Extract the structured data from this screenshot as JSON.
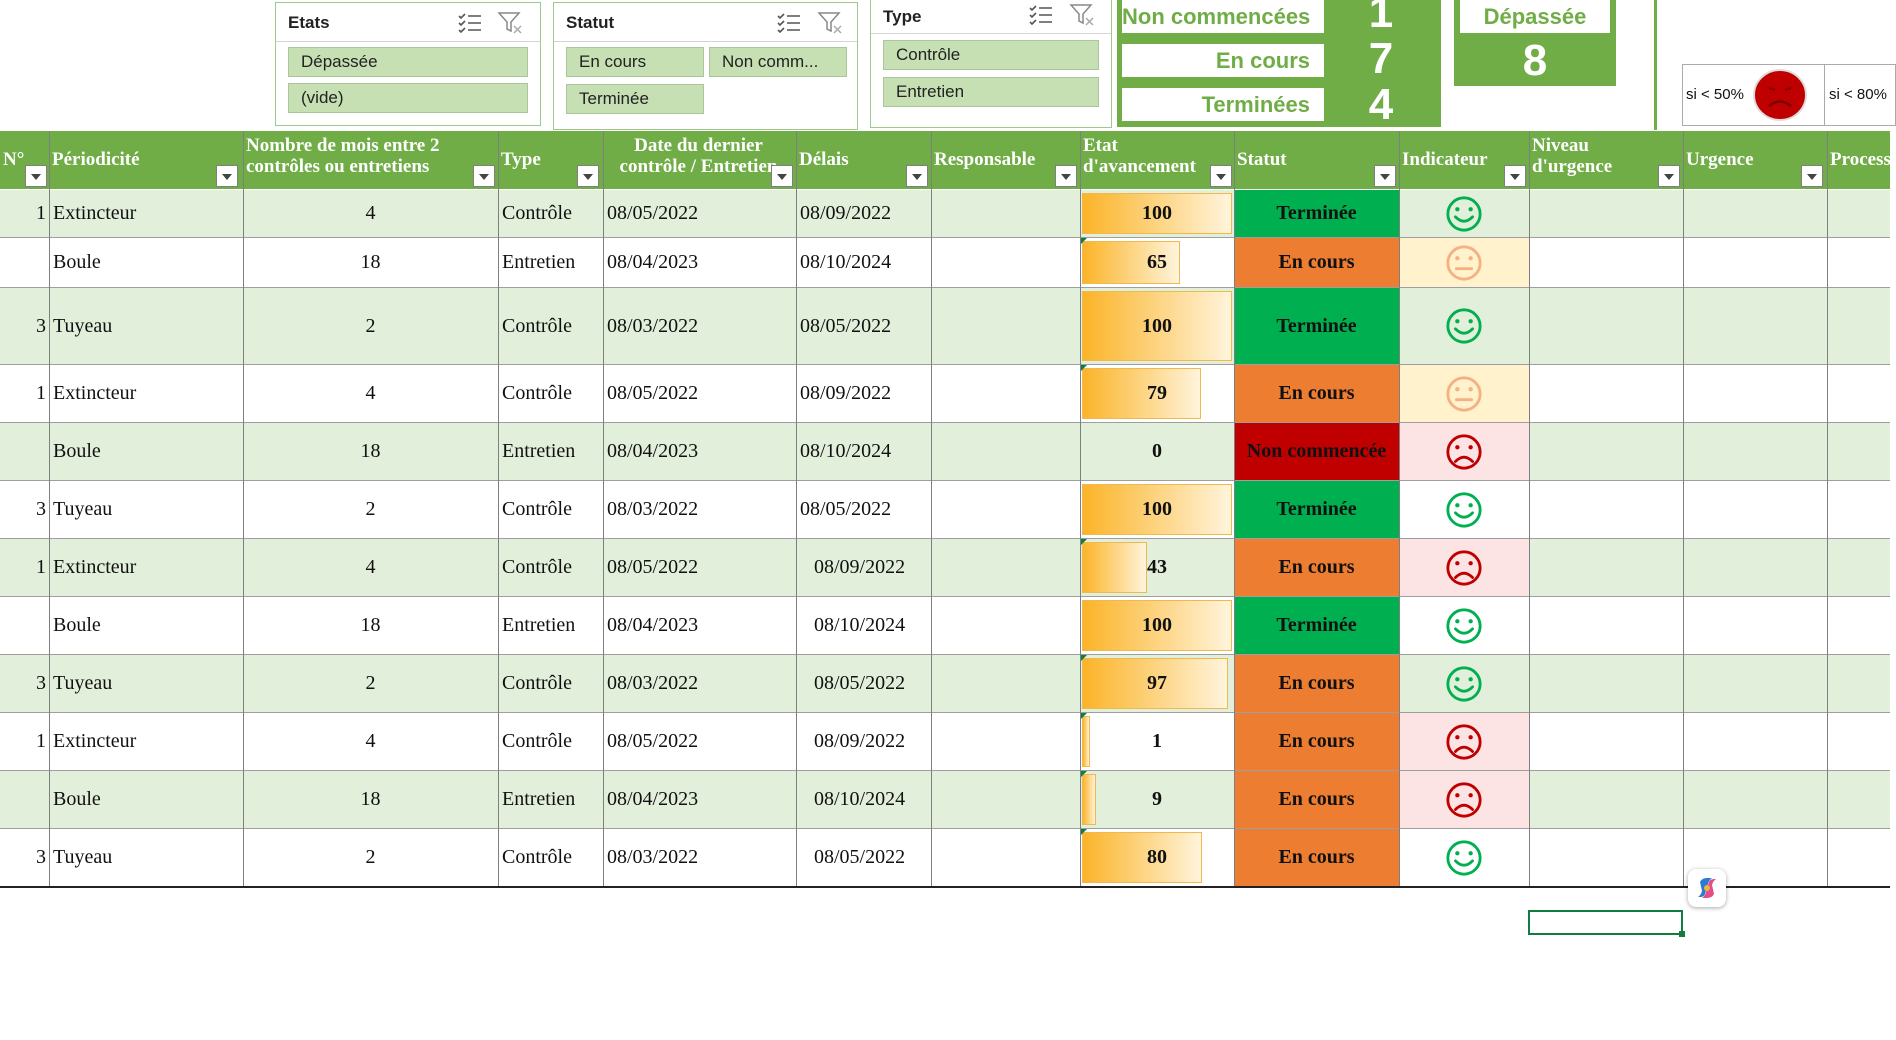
{
  "slicers": {
    "etats": {
      "title": "Etats",
      "items": [
        "Dépassée",
        "(vide)"
      ]
    },
    "statut": {
      "title": "Statut",
      "items": [
        "En cours",
        "Non comm...",
        "Terminée"
      ]
    },
    "type": {
      "title": "Type",
      "items": [
        "Contrôle",
        "Entretien"
      ]
    }
  },
  "kpis": [
    {
      "label": "Non commencées",
      "value": "1"
    },
    {
      "label": "En cours",
      "value": "7"
    },
    {
      "label": "Terminées",
      "value": "4"
    }
  ],
  "overdue": {
    "label": "Dépassée",
    "value": "8"
  },
  "legend": {
    "lt50": "si < 50%",
    "lt80": "si < 80%"
  },
  "headers": {
    "num": "N°",
    "periodicite": "Périodicité",
    "nbmois": [
      "Nombre de mois entre 2",
      "contrôles ou entretiens"
    ],
    "type": "Type",
    "date": [
      "Date  du dernier",
      "contrôle / Entretien"
    ],
    "delais": "Délais",
    "responsable": "Responsable",
    "etat": [
      "Etat",
      "d'avancement"
    ],
    "statut": "Statut",
    "indicateur": "Indicateur",
    "niveau": [
      "Niveau",
      "d'urgence"
    ],
    "urgence": "Urgence",
    "process": "Process"
  },
  "colors": {
    "header_green": "#70ad47",
    "band_green": "#e2efda",
    "done_green": "#00b050",
    "in_progress_orange": "#ed7d31",
    "not_started_red": "#c00000",
    "smile_green": "#00b050",
    "neutral_orange": "#f4b183",
    "sad_red": "#c00000"
  },
  "rows": [
    {
      "num": "1",
      "periodicite": "Extincteur",
      "nbmois": "4",
      "type": "Contrôle",
      "date": "08/05/2022",
      "delais": "08/09/2022",
      "etat": 100,
      "statut": "Terminée",
      "indicateur": "smile"
    },
    {
      "num": "",
      "periodicite": "Boule",
      "nbmois": "18",
      "type": "Entretien",
      "date": "08/04/2023",
      "delais": "08/10/2024",
      "etat": 65,
      "statut": "En cours",
      "indicateur": "neutral"
    },
    {
      "num": "3",
      "periodicite": "Tuyeau",
      "nbmois": "2",
      "type": "Contrôle",
      "date": "08/03/2022",
      "delais": "08/05/2022",
      "etat": 100,
      "statut": "Terminée",
      "indicateur": "smile"
    },
    {
      "num": "1",
      "periodicite": "Extincteur",
      "nbmois": "4",
      "type": "Contrôle",
      "date": "08/05/2022",
      "delais": "08/09/2022",
      "etat": 79,
      "statut": "En cours",
      "indicateur": "neutral"
    },
    {
      "num": "",
      "periodicite": "Boule",
      "nbmois": "18",
      "type": "Entretien",
      "date": "08/04/2023",
      "delais": "08/10/2024",
      "etat": 0,
      "statut": "Non commencée",
      "indicateur": "sad"
    },
    {
      "num": "3",
      "periodicite": "Tuyeau",
      "nbmois": "2",
      "type": "Contrôle",
      "date": "08/03/2022",
      "delais": "08/05/2022",
      "etat": 100,
      "statut": "Terminée",
      "indicateur": "smile"
    },
    {
      "num": "1",
      "periodicite": "Extincteur",
      "nbmois": "4",
      "type": "Contrôle",
      "date": "08/05/2022",
      "delais": "08/09/2022",
      "etat": 43,
      "statut": "En cours",
      "indicateur": "sad"
    },
    {
      "num": "",
      "periodicite": "Boule",
      "nbmois": "18",
      "type": "Entretien",
      "date": "08/04/2023",
      "delais": "08/10/2024",
      "etat": 100,
      "statut": "Terminée",
      "indicateur": "smile"
    },
    {
      "num": "3",
      "periodicite": "Tuyeau",
      "nbmois": "2",
      "type": "Contrôle",
      "date": "08/03/2022",
      "delais": "08/05/2022",
      "etat": 97,
      "statut": "En cours",
      "indicateur": "smile"
    },
    {
      "num": "1",
      "periodicite": "Extincteur",
      "nbmois": "4",
      "type": "Contrôle",
      "date": "08/05/2022",
      "delais": "08/09/2022",
      "etat": 1,
      "statut": "En cours",
      "indicateur": "sad"
    },
    {
      "num": "",
      "periodicite": "Boule",
      "nbmois": "18",
      "type": "Entretien",
      "date": "08/04/2023",
      "delais": "08/10/2024",
      "etat": 9,
      "statut": "En cours",
      "indicateur": "sad"
    },
    {
      "num": "3",
      "periodicite": "Tuyeau",
      "nbmois": "2",
      "type": "Contrôle",
      "date": "08/03/2022",
      "delais": "08/05/2022",
      "etat": 80,
      "statut": "En cours",
      "indicateur": "smile"
    }
  ]
}
